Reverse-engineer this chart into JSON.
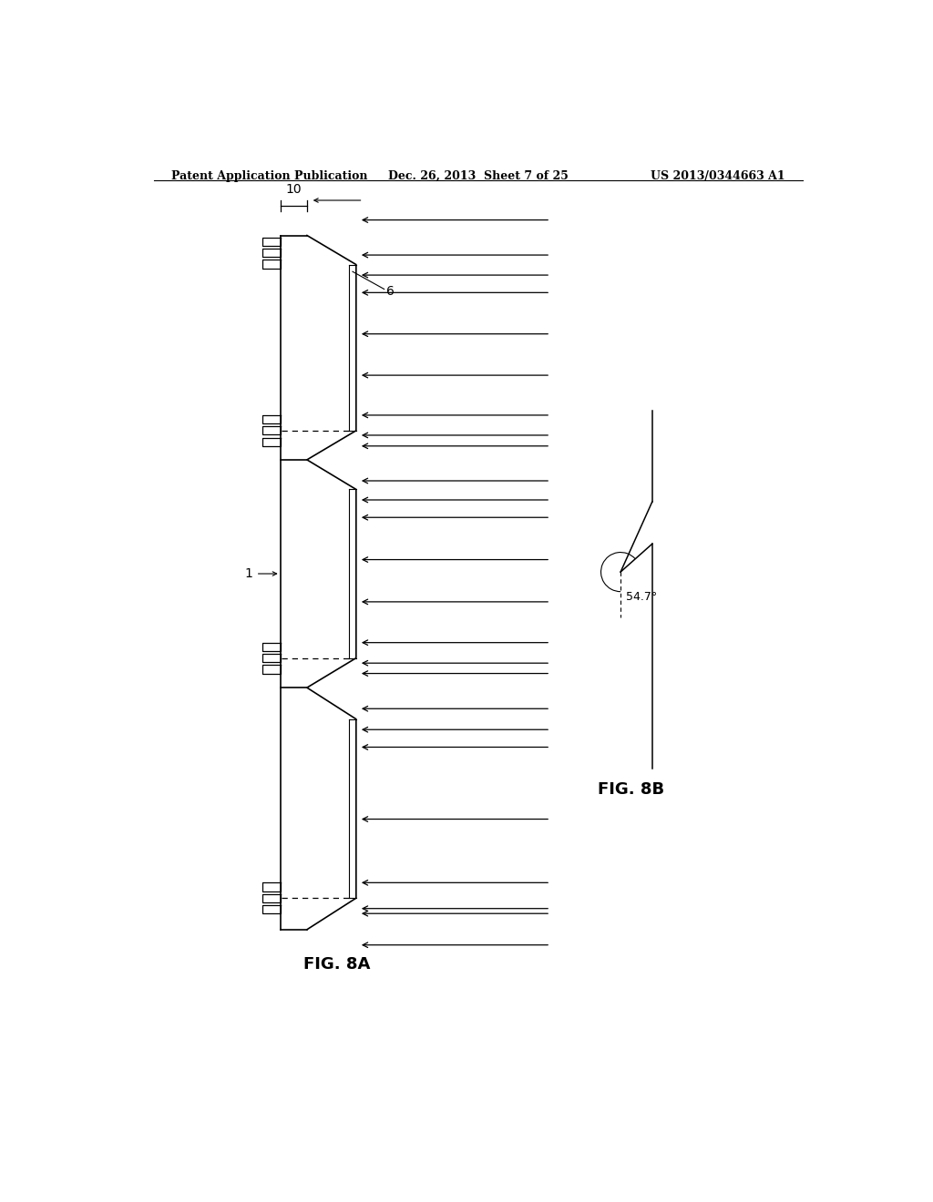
{
  "bg_color": "#ffffff",
  "header_left": "Patent Application Publication",
  "header_center": "Dec. 26, 2013  Sheet 7 of 25",
  "header_right": "US 2013/0344663 A1",
  "fig8a_label": "FIG. 8A",
  "fig8b_label": "FIG. 8B",
  "label_10": "10",
  "label_6": "6",
  "label_1": "1",
  "angle_label": "54.7°",
  "line_color": "#000000"
}
